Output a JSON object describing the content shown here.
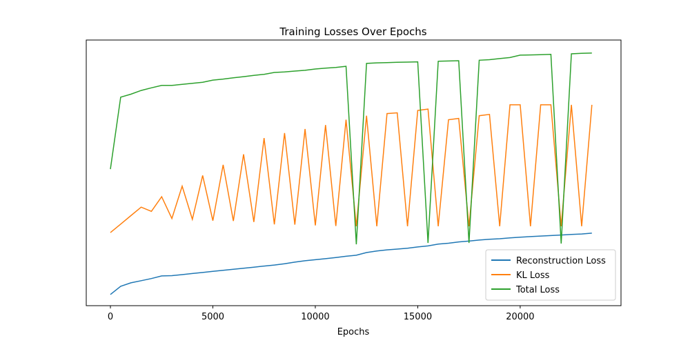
{
  "chart_data": {
    "type": "line",
    "title": "Training Losses Over Epochs",
    "xlabel": "Epochs",
    "x": [
      0,
      500,
      1000,
      1500,
      2000,
      2500,
      3000,
      3500,
      4000,
      4500,
      5000,
      5500,
      6000,
      6500,
      7000,
      7500,
      8000,
      8500,
      9000,
      9500,
      10000,
      10500,
      11000,
      11500,
      12000,
      12500,
      13000,
      13500,
      14000,
      14500,
      15000,
      15500,
      16000,
      16500,
      17000,
      17500,
      18000,
      18500,
      19000,
      19500,
      20000,
      20500,
      21000,
      21500,
      22000,
      22500,
      23000,
      23500
    ],
    "series": [
      {
        "name": "Reconstruction Loss",
        "color": "#1f77b4",
        "values": [
          4.2,
          7.3,
          8.6,
          9.4,
          10.2,
          11.2,
          11.3,
          11.7,
          12.1,
          12.5,
          12.9,
          13.3,
          13.7,
          14.1,
          14.5,
          14.9,
          15.3,
          15.8,
          16.4,
          16.9,
          17.3,
          17.7,
          18.1,
          18.6,
          19.0,
          20.0,
          20.6,
          21.0,
          21.3,
          21.6,
          22.1,
          22.5,
          23.2,
          23.5,
          24.0,
          24.3,
          24.7,
          25.0,
          25.2,
          25.5,
          25.8,
          26.0,
          26.2,
          26.4,
          26.6,
          26.8,
          27.0,
          27.3
        ]
      },
      {
        "name": "KL Loss",
        "color": "#ff7f0e",
        "values": [
          27.5,
          30.7,
          33.9,
          37.1,
          35.5,
          41,
          32.8,
          45,
          32.5,
          49,
          32,
          53,
          31.9,
          57,
          31.5,
          63.1,
          30.6,
          65,
          30.5,
          66.5,
          30.2,
          68,
          30,
          70,
          29.9,
          71.5,
          29.9,
          72.3,
          72.6,
          29.9,
          73.5,
          74,
          29.9,
          70,
          70.5,
          29.9,
          71.5,
          72,
          29.9,
          75.6,
          75.6,
          29.9,
          75.6,
          75.6,
          29.9,
          75.6,
          29.9,
          75.6
        ]
      },
      {
        "name": "Total Loss",
        "color": "#2ca02c",
        "values": [
          51.4,
          78.5,
          79.6,
          81.0,
          82.0,
          82.9,
          82.9,
          83.3,
          83.7,
          84.1,
          84.9,
          85.3,
          85.8,
          86.2,
          86.7,
          87.1,
          87.8,
          88.0,
          88.3,
          88.6,
          89.1,
          89.4,
          89.7,
          90.1,
          23.1,
          91.2,
          91.4,
          91.5,
          91.6,
          91.7,
          91.8,
          23.6,
          92.0,
          92.1,
          92.2,
          23.6,
          92.4,
          92.6,
          93.0,
          93.4,
          94.3,
          94.4,
          94.5,
          94.6,
          23.4,
          94.8,
          95.0,
          95.1
        ]
      }
    ],
    "xlim": [
      -1180,
      24920
    ],
    "xticks": [
      0,
      5000,
      10000,
      15000,
      20000
    ],
    "ylim": [
      0,
      100
    ],
    "legend": "lower right"
  }
}
